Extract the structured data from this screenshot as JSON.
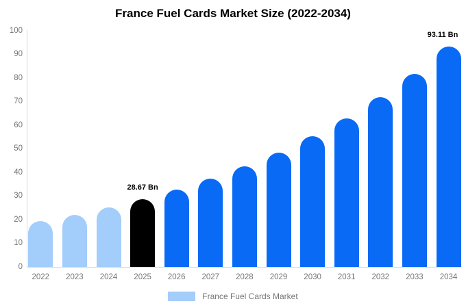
{
  "chart_data": {
    "type": "bar",
    "title": "France Fuel Cards Market Size (2022-2034)",
    "unit": "Bn",
    "categories": [
      "2022",
      "2023",
      "2024",
      "2025",
      "2026",
      "2027",
      "2028",
      "2029",
      "2030",
      "2031",
      "2032",
      "2033",
      "2034"
    ],
    "values": [
      19.4,
      22.1,
      25.2,
      28.67,
      32.7,
      37.3,
      42.5,
      48.4,
      55.2,
      62.9,
      71.7,
      81.7,
      93.11
    ],
    "bar_colors": [
      "#a3cdfa",
      "#a3cdfa",
      "#a3cdfa",
      "#000000",
      "#086af5",
      "#086af5",
      "#086af5",
      "#086af5",
      "#086af5",
      "#086af5",
      "#086af5",
      "#086af5",
      "#086af5"
    ],
    "data_labels": [
      {
        "category": "2025",
        "text": "28.67 Bn"
      },
      {
        "category": "2034",
        "text": "93.11 Bn"
      }
    ],
    "ylim": [
      0,
      100
    ],
    "y_ticks": [
      0,
      10,
      20,
      30,
      40,
      50,
      60,
      70,
      80,
      90,
      100
    ],
    "grid": false,
    "legend": {
      "position": "bottom",
      "label": "France Fuel Cards Market",
      "swatch_color": "#a3cdfa"
    },
    "colors": {
      "historical_bar": "#a3cdfa",
      "base_year_bar": "#000000",
      "forecast_bar": "#086af5",
      "axis_line": "#d9d9d9",
      "tick_text": "#757575",
      "title_text": "#000000",
      "background": "#ffffff"
    }
  }
}
